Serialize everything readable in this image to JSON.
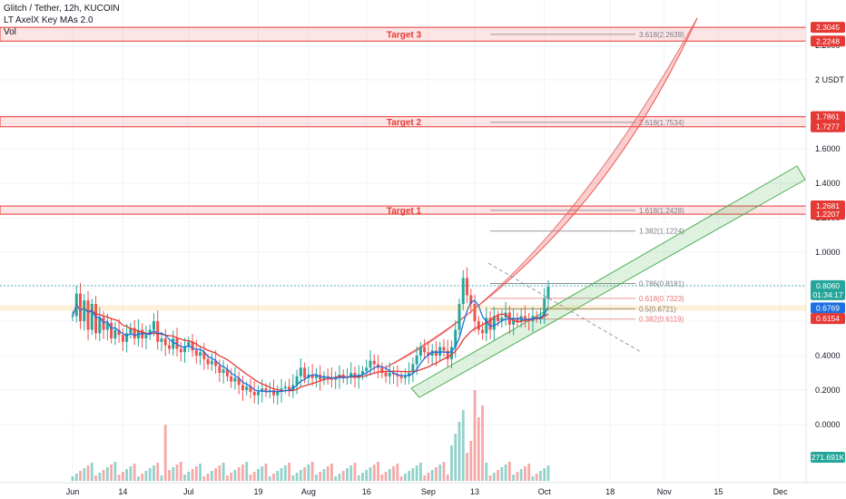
{
  "header": {
    "symbol": "Glitch / Tether, 12h, KUCOIN",
    "indicator": "LT AxelX Key MAs 2.0",
    "volume": "Vol"
  },
  "chart_data": {
    "type": "candlestick",
    "yaxis": {
      "unit": "USDT",
      "ticks": [
        {
          "v": 2.0,
          "label": "2 USDT"
        },
        {
          "v": 1.8,
          "label": "1.8000"
        },
        {
          "v": 1.6,
          "label": "1.6000"
        },
        {
          "v": 1.4,
          "label": "1.4000"
        },
        {
          "v": 1.2,
          "label": "1.2000"
        },
        {
          "v": 1.0,
          "label": "1.0000"
        },
        {
          "v": 0.8,
          "label": "0.8000"
        },
        {
          "v": 0.6,
          "label": "0.6000"
        },
        {
          "v": 0.4,
          "label": "0.4000"
        },
        {
          "v": 0.2,
          "label": "0.2000"
        },
        {
          "v": 0.0,
          "label": "0.0000"
        },
        {
          "v": 2.2,
          "label": "2.2000"
        }
      ]
    },
    "xaxis": {
      "ticks": [
        {
          "day": 0,
          "label": "Jun"
        },
        {
          "day": 13,
          "label": "14"
        },
        {
          "day": 30,
          "label": "Jul"
        },
        {
          "day": 48,
          "label": "19"
        },
        {
          "day": 61,
          "label": "Aug"
        },
        {
          "day": 76,
          "label": "16"
        },
        {
          "day": 92,
          "label": "Sep"
        },
        {
          "day": 104,
          "label": "13"
        },
        {
          "day": 122,
          "label": "Oct"
        },
        {
          "day": 139,
          "label": "18"
        },
        {
          "day": 153,
          "label": "Nov"
        },
        {
          "day": 167,
          "label": "15"
        },
        {
          "day": 183,
          "label": "Dec"
        }
      ]
    },
    "price_series": [
      [
        0,
        0.63
      ],
      [
        1,
        0.76
      ],
      [
        2,
        0.6
      ],
      [
        3,
        0.72
      ],
      [
        4,
        0.55
      ],
      [
        5,
        0.7
      ],
      [
        6,
        0.53
      ],
      [
        7,
        0.62
      ],
      [
        8,
        0.55
      ],
      [
        9,
        0.59
      ],
      [
        10,
        0.5
      ],
      [
        11,
        0.55
      ],
      [
        12,
        0.52
      ],
      [
        13,
        0.48
      ],
      [
        14,
        0.53
      ],
      [
        15,
        0.56
      ],
      [
        16,
        0.5
      ],
      [
        17,
        0.55
      ],
      [
        18,
        0.5
      ],
      [
        19,
        0.52
      ],
      [
        20,
        0.55
      ],
      [
        21,
        0.6
      ],
      [
        22,
        0.48
      ],
      [
        23,
        0.5
      ],
      [
        24,
        0.46
      ],
      [
        25,
        0.44
      ],
      [
        26,
        0.5
      ],
      [
        27,
        0.44
      ],
      [
        28,
        0.42
      ],
      [
        29,
        0.45
      ],
      [
        30,
        0.48
      ],
      [
        31,
        0.43
      ],
      [
        32,
        0.4
      ],
      [
        33,
        0.42
      ],
      [
        34,
        0.38
      ],
      [
        35,
        0.35
      ],
      [
        36,
        0.37
      ],
      [
        37,
        0.34
      ],
      [
        38,
        0.3
      ],
      [
        39,
        0.32
      ],
      [
        40,
        0.28
      ],
      [
        41,
        0.25
      ],
      [
        42,
        0.27
      ],
      [
        43,
        0.23
      ],
      [
        44,
        0.2
      ],
      [
        45,
        0.22
      ],
      [
        46,
        0.19
      ],
      [
        47,
        0.17
      ],
      [
        48,
        0.19
      ],
      [
        49,
        0.21
      ],
      [
        50,
        0.19
      ],
      [
        51,
        0.2
      ],
      [
        52,
        0.17
      ],
      [
        53,
        0.19
      ],
      [
        54,
        0.21
      ],
      [
        55,
        0.22
      ],
      [
        56,
        0.2
      ],
      [
        57,
        0.23
      ],
      [
        58,
        0.28
      ],
      [
        59,
        0.33
      ],
      [
        60,
        0.27
      ],
      [
        61,
        0.29
      ],
      [
        62,
        0.27
      ],
      [
        63,
        0.29
      ],
      [
        64,
        0.26
      ],
      [
        65,
        0.28
      ],
      [
        66,
        0.27
      ],
      [
        67,
        0.26
      ],
      [
        68,
        0.27
      ],
      [
        69,
        0.29
      ],
      [
        70,
        0.27
      ],
      [
        71,
        0.28
      ],
      [
        72,
        0.3
      ],
      [
        73,
        0.27
      ],
      [
        74,
        0.29
      ],
      [
        75,
        0.31
      ],
      [
        76,
        0.33
      ],
      [
        77,
        0.37
      ],
      [
        78,
        0.35
      ],
      [
        79,
        0.33
      ],
      [
        80,
        0.3
      ],
      [
        81,
        0.28
      ],
      [
        82,
        0.3
      ],
      [
        83,
        0.29
      ],
      [
        84,
        0.28
      ],
      [
        85,
        0.27
      ],
      [
        86,
        0.28
      ],
      [
        87,
        0.3
      ],
      [
        88,
        0.35
      ],
      [
        89,
        0.4
      ],
      [
        90,
        0.45
      ],
      [
        91,
        0.42
      ],
      [
        92,
        0.4
      ],
      [
        93,
        0.43
      ],
      [
        94,
        0.4
      ],
      [
        95,
        0.45
      ],
      [
        96,
        0.43
      ],
      [
        97,
        0.38
      ],
      [
        98,
        0.45
      ],
      [
        99,
        0.55
      ],
      [
        100,
        0.7
      ],
      [
        101,
        0.85
      ],
      [
        102,
        0.75
      ],
      [
        103,
        0.7
      ],
      [
        104,
        0.6
      ],
      [
        105,
        0.55
      ],
      [
        106,
        0.53
      ],
      [
        107,
        0.62
      ],
      [
        108,
        0.55
      ],
      [
        109,
        0.63
      ],
      [
        110,
        0.6
      ],
      [
        111,
        0.62
      ],
      [
        112,
        0.65
      ],
      [
        113,
        0.58
      ],
      [
        114,
        0.62
      ],
      [
        115,
        0.6
      ],
      [
        116,
        0.63
      ],
      [
        117,
        0.61
      ],
      [
        118,
        0.6
      ],
      [
        119,
        0.63
      ],
      [
        120,
        0.62
      ],
      [
        121,
        0.63
      ],
      [
        122,
        0.73
      ],
      [
        123,
        0.8
      ]
    ],
    "last_price": "0.8060",
    "countdown": "01:34:17",
    "volume_last": "271.691K",
    "zones": [
      {
        "label": "Target 3",
        "top": 2.3045,
        "bottom": 2.2248
      },
      {
        "label": "Target 2",
        "top": 1.7861,
        "bottom": 1.7277
      },
      {
        "label": "Target 1",
        "top": 1.2681,
        "bottom": 1.2207
      }
    ],
    "price_badges": [
      {
        "text": "2.3045",
        "v": 2.3045,
        "color": "#e53935"
      },
      {
        "text": "2.2248",
        "v": 2.2248,
        "color": "#e53935"
      },
      {
        "text": "1.7861",
        "v": 1.7861,
        "color": "#e53935"
      },
      {
        "text": "1.7277",
        "v": 1.7277,
        "color": "#e53935"
      },
      {
        "text": "1.2681",
        "v": 1.2681,
        "color": "#e53935"
      },
      {
        "text": "1.2207",
        "v": 1.2207,
        "color": "#e53935"
      },
      {
        "text": "0.6769",
        "v": 0.6769,
        "color": "#1e6fe0"
      },
      {
        "text": "0.6154",
        "v": 0.6154,
        "color": "#e53935"
      }
    ],
    "fib_levels": [
      {
        "label": "3.618(2.2639)",
        "v": 2.2639,
        "color": "#787b86"
      },
      {
        "label": "2.618(1.7534)",
        "v": 1.7534,
        "color": "#787b86"
      },
      {
        "label": "1.618(1.2428)",
        "v": 1.2428,
        "color": "#787b86"
      },
      {
        "label": "1.382(1.1224)",
        "v": 1.1224,
        "color": "#787b86"
      },
      {
        "label": "0.786(0.8181)",
        "v": 0.8181,
        "color": "#787b86"
      },
      {
        "label": "0.618(0.7323)",
        "v": 0.7323,
        "color": "#e57373"
      },
      {
        "label": "0.5(0.6721)",
        "v": 0.6721,
        "color": "#787b86"
      },
      {
        "label": "0.382(0.6119)",
        "v": 0.6119,
        "color": "#e57373"
      }
    ],
    "colors": {
      "up": "#26a69a",
      "down": "#ef5350",
      "ma_fast": "#1e6fe0",
      "ma_slow": "#e53935",
      "target": "#e53935",
      "channel": "#4caf50",
      "last_price": "#26a69a"
    }
  }
}
